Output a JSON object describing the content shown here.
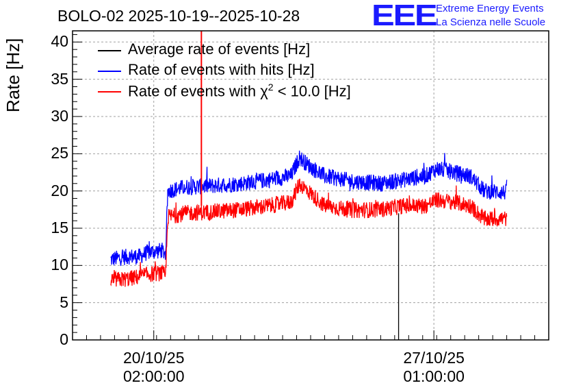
{
  "chart_data": {
    "type": "line",
    "title": "BOLO-02 2025-10-19--2025-10-28",
    "ylabel": "Rate [Hz]",
    "xlabel": "",
    "ylim": [
      0,
      41.5
    ],
    "yticks": [
      0,
      5,
      10,
      15,
      20,
      25,
      30,
      35,
      40
    ],
    "xlim_days": [
      0,
      8.5
    ],
    "xticks": [
      {
        "day": 1.45,
        "line1": "20/10/25",
        "line2": "02:00:00"
      },
      {
        "day": 6.45,
        "line1": "27/10/25",
        "line2": "01:00:00"
      }
    ],
    "grid": true,
    "legend": {
      "position": "top-left",
      "entries": [
        {
          "label": "Average rate of events [Hz]",
          "color": "#000000"
        },
        {
          "label": "Rate of events with hits [Hz]",
          "color": "#0000ff"
        },
        {
          "label": "Rate of events with χ² < 10.0 [Hz]",
          "label_pre": "Rate of events with ",
          "label_chi": "χ",
          "label_sup": "2",
          "label_post": " < 10.0 [Hz]",
          "color": "#ff0000"
        }
      ]
    },
    "series": [
      {
        "name": "Rate of events with hits [Hz]",
        "color": "#0000ff",
        "days": [
          0.68,
          1.0,
          1.2,
          1.35,
          1.6,
          1.66,
          1.7,
          2.0,
          2.5,
          3.0,
          3.5,
          3.9,
          4.05,
          4.2,
          4.5,
          5.0,
          5.5,
          5.9,
          6.3,
          6.5,
          6.8,
          7.1,
          7.35,
          7.75
        ],
        "values": [
          10.8,
          11.2,
          11.2,
          11.8,
          12.0,
          11.5,
          20.0,
          20.5,
          20.7,
          21.0,
          21.5,
          22.0,
          24.5,
          23.5,
          22.0,
          21.3,
          21.0,
          21.5,
          22.0,
          23.0,
          22.5,
          22.0,
          20.0,
          19.8
        ]
      },
      {
        "name": "Rate of events with χ² < 10.0 [Hz]",
        "color": "#ff0000",
        "days": [
          0.68,
          1.0,
          1.2,
          1.35,
          1.6,
          1.66,
          1.7,
          2.0,
          2.5,
          3.0,
          3.5,
          3.9,
          4.05,
          4.2,
          4.5,
          5.0,
          5.5,
          5.9,
          6.3,
          6.5,
          6.8,
          7.1,
          7.35,
          7.75
        ],
        "values": [
          8.0,
          8.2,
          8.5,
          8.8,
          9.0,
          8.5,
          16.5,
          17.0,
          17.2,
          17.5,
          18.0,
          18.5,
          21.0,
          20.0,
          18.0,
          17.4,
          17.5,
          18.0,
          18.0,
          18.8,
          18.5,
          18.0,
          16.2,
          16.3
        ]
      },
      {
        "name": "Average rate of events [Hz]",
        "color": "#000000",
        "days": [
          5.82,
          5.82,
          5.82
        ],
        "values": [
          0,
          17.0,
          11.0
        ]
      }
    ],
    "spikes": [
      {
        "color": "#ff0000",
        "day": 2.3,
        "from": 18.0,
        "to": 41.5
      }
    ]
  },
  "logo": {
    "mark": "EEE",
    "line1": "Extreme Energy Events",
    "line2": "La Scienza nelle Scuole"
  }
}
